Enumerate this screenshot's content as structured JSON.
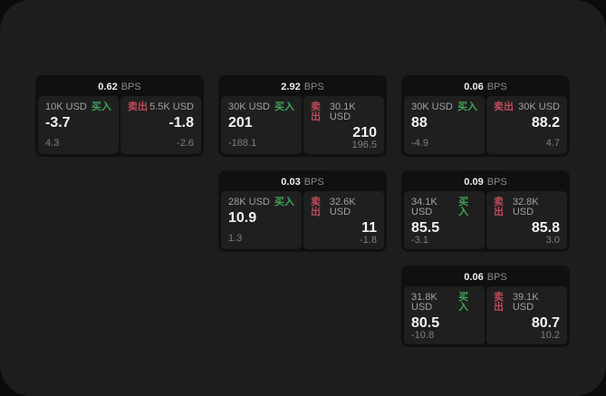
{
  "theme": {
    "page_bg": "#0b0b0b",
    "window_bg": "#1d1d1d",
    "card_bg": "#101010",
    "subcard_bg": "#1f1f1f",
    "buy_color": "#3fa35a",
    "sell_color": "#bd4a59",
    "value_color": "#f2f2f2",
    "muted_color": "#7d7d7d"
  },
  "labels": {
    "bps": "BPS",
    "buy": "买入",
    "sell": "卖出"
  },
  "cards": [
    {
      "bps": "0.62",
      "buy": {
        "amount": "10K USD",
        "price": "-3.7",
        "delta": "4.3"
      },
      "sell": {
        "amount": "5.5K USD",
        "price": "-1.8",
        "delta": "-2.6"
      }
    },
    {
      "bps": "2.92",
      "buy": {
        "amount": "30K USD",
        "price": "201",
        "delta": "-188.1"
      },
      "sell": {
        "amount": "30.1K USD",
        "price": "210",
        "delta": "196.5"
      }
    },
    {
      "bps": "0.06",
      "buy": {
        "amount": "30K USD",
        "price": "88",
        "delta": "-4.9"
      },
      "sell": {
        "amount": "30K USD",
        "price": "88.2",
        "delta": "4.7"
      }
    },
    {
      "bps": "0.03",
      "buy": {
        "amount": "28K USD",
        "price": "10.9",
        "delta": "1.3"
      },
      "sell": {
        "amount": "32.6K USD",
        "price": "11",
        "delta": "-1.8"
      }
    },
    {
      "bps": "0.09",
      "buy": {
        "amount": "34.1K USD",
        "price": "85.5",
        "delta": "-3.1"
      },
      "sell": {
        "amount": "32.8K USD",
        "price": "85.8",
        "delta": "3.0"
      }
    },
    {
      "bps": "0.06",
      "buy": {
        "amount": "31.8K USD",
        "price": "80.5",
        "delta": "-10.8"
      },
      "sell": {
        "amount": "39.1K USD",
        "price": "80.7",
        "delta": "10.2"
      }
    }
  ]
}
